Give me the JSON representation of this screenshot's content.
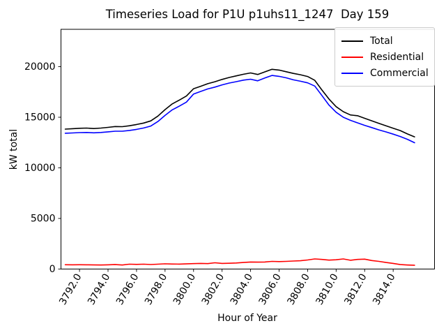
{
  "chart_data": {
    "type": "line",
    "title": "Timeseries Load for P1U p1uhs11_1247  Day 159",
    "xlabel": "Hour of Year",
    "ylabel": "kW total",
    "xlim": [
      3790.7,
      3816.9
    ],
    "ylim": [
      0,
      23690
    ],
    "grid": false,
    "legend_position": "upper right",
    "x_ticks": {
      "values": [
        3792,
        3794,
        3796,
        3798,
        3800,
        3802,
        3804,
        3806,
        3808,
        3810,
        3812,
        3814
      ],
      "labels": [
        "3792.0",
        "3794.0",
        "3796.0",
        "3798.0",
        "3800.0",
        "3802.0",
        "3804.0",
        "3806.0",
        "3808.0",
        "3810.0",
        "3812.0",
        "3814.0"
      ]
    },
    "y_ticks": {
      "values": [
        0,
        5000,
        10000,
        15000,
        20000
      ],
      "labels": [
        "0",
        "5000",
        "10000",
        "15000",
        "20000"
      ]
    },
    "x": [
      3791.0,
      3791.5,
      3792.0,
      3792.5,
      3793.0,
      3793.5,
      3794.0,
      3794.5,
      3795.0,
      3795.5,
      3796.0,
      3796.5,
      3797.0,
      3797.5,
      3798.0,
      3798.5,
      3799.0,
      3799.5,
      3800.0,
      3800.5,
      3801.0,
      3801.5,
      3802.0,
      3802.5,
      3803.0,
      3803.5,
      3804.0,
      3804.5,
      3805.0,
      3805.5,
      3806.0,
      3806.5,
      3807.0,
      3807.5,
      3808.0,
      3808.5,
      3809.0,
      3809.5,
      3810.0,
      3810.5,
      3811.0,
      3811.5,
      3812.0,
      3812.5,
      3813.0,
      3813.5,
      3814.0,
      3814.5,
      3815.0,
      3815.5
    ],
    "series": [
      {
        "name": "Total",
        "color": "#000000",
        "values": [
          13830,
          13870,
          13910,
          13930,
          13880,
          13930,
          14000,
          14080,
          14070,
          14160,
          14280,
          14430,
          14640,
          15120,
          15750,
          16320,
          16700,
          17100,
          17820,
          18060,
          18320,
          18510,
          18740,
          18930,
          19090,
          19250,
          19380,
          19230,
          19480,
          19740,
          19660,
          19500,
          19330,
          19200,
          19030,
          18650,
          17700,
          16800,
          16050,
          15550,
          15230,
          15150,
          14900,
          14650,
          14400,
          14150,
          13920,
          13680,
          13350,
          13060
        ]
      },
      {
        "name": "Residential",
        "color": "#ff0000",
        "values": [
          430,
          420,
          430,
          420,
          410,
          400,
          420,
          440,
          400,
          480,
          460,
          480,
          450,
          480,
          520,
          500,
          490,
          510,
          540,
          560,
          540,
          620,
          560,
          570,
          600,
          650,
          700,
          680,
          700,
          760,
          740,
          760,
          790,
          820,
          900,
          1000,
          950,
          880,
          920,
          1000,
          870,
          950,
          980,
          840,
          760,
          650,
          560,
          440,
          400,
          370
        ]
      },
      {
        "name": "Commercial",
        "color": "#0000ff",
        "values": [
          13420,
          13450,
          13480,
          13500,
          13460,
          13500,
          13560,
          13620,
          13620,
          13700,
          13800,
          13940,
          14130,
          14580,
          15180,
          15730,
          16100,
          16500,
          17300,
          17550,
          17800,
          17980,
          18200,
          18380,
          18520,
          18670,
          18760,
          18600,
          18880,
          19130,
          19040,
          18900,
          18700,
          18560,
          18400,
          18080,
          17150,
          16200,
          15500,
          15000,
          14700,
          14450,
          14200,
          13980,
          13750,
          13550,
          13330,
          13100,
          12820,
          12480
        ]
      }
    ]
  }
}
